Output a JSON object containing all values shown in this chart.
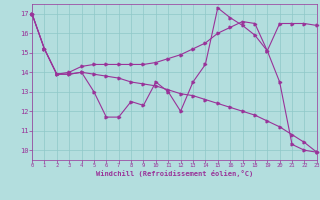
{
  "xlabel": "Windchill (Refroidissement éolien,°C)",
  "line_color": "#993399",
  "bg_color": "#b3dede",
  "grid_color": "#8fc8c8",
  "xlim": [
    0,
    23
  ],
  "ylim": [
    9.5,
    17.5
  ],
  "xticks": [
    0,
    1,
    2,
    3,
    4,
    5,
    6,
    7,
    8,
    9,
    10,
    11,
    12,
    13,
    14,
    15,
    16,
    17,
    18,
    19,
    20,
    21,
    22,
    23
  ],
  "yticks": [
    10,
    11,
    12,
    13,
    14,
    15,
    16,
    17
  ],
  "line1_x": [
    0,
    1,
    2,
    3,
    4,
    5,
    6,
    7,
    8,
    9,
    10,
    11,
    12,
    13,
    14,
    15,
    16,
    17,
    18,
    19,
    20,
    21,
    22,
    23
  ],
  "line1_y": [
    17.0,
    15.2,
    13.9,
    13.9,
    14.0,
    13.0,
    11.7,
    11.7,
    12.5,
    12.3,
    13.5,
    13.0,
    12.0,
    13.5,
    14.4,
    17.3,
    16.8,
    16.4,
    15.9,
    15.1,
    13.5,
    10.3,
    10.0,
    9.9
  ],
  "line2_x": [
    0,
    1,
    2,
    3,
    4,
    5,
    6,
    7,
    8,
    9,
    10,
    11,
    12,
    13,
    14,
    15,
    16,
    17,
    18,
    19,
    20,
    21,
    22,
    23
  ],
  "line2_y": [
    17.0,
    15.2,
    13.9,
    14.0,
    14.3,
    14.4,
    14.4,
    14.4,
    14.4,
    14.4,
    14.5,
    14.7,
    14.9,
    15.2,
    15.5,
    16.0,
    16.3,
    16.6,
    16.5,
    15.1,
    16.5,
    16.5,
    16.5,
    16.4
  ],
  "line3_x": [
    0,
    1,
    2,
    3,
    4,
    5,
    6,
    7,
    8,
    9,
    10,
    11,
    12,
    13,
    14,
    15,
    16,
    17,
    18,
    19,
    20,
    21,
    22,
    23
  ],
  "line3_y": [
    17.0,
    15.2,
    13.9,
    13.9,
    14.0,
    13.9,
    13.8,
    13.7,
    13.5,
    13.4,
    13.3,
    13.1,
    12.9,
    12.8,
    12.6,
    12.4,
    12.2,
    12.0,
    11.8,
    11.5,
    11.2,
    10.8,
    10.4,
    9.9
  ]
}
